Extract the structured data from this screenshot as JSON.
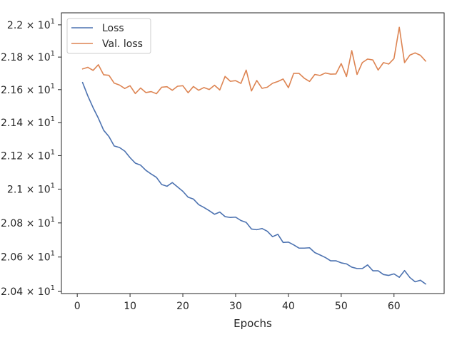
{
  "chart_data": {
    "type": "line",
    "xlabel": "Epochs",
    "ylabel": "",
    "title": "",
    "xlim": [
      -3,
      69.5
    ],
    "ylim": [
      20.388,
      22.075
    ],
    "x_ticks": [
      0,
      10,
      20,
      30,
      40,
      50,
      60
    ],
    "x_tick_labels": [
      "0",
      "10",
      "20",
      "30",
      "40",
      "50",
      "60"
    ],
    "y_ticks": [
      {
        "value": 20.4,
        "mant": "2.04",
        "exp": "1"
      },
      {
        "value": 20.6,
        "mant": "2.06",
        "exp": "1"
      },
      {
        "value": 20.8,
        "mant": "2.08",
        "exp": "1"
      },
      {
        "value": 21.0,
        "mant": "2.1",
        "exp": "1"
      },
      {
        "value": 21.2,
        "mant": "2.12",
        "exp": "1"
      },
      {
        "value": 21.4,
        "mant": "2.14",
        "exp": "1"
      },
      {
        "value": 21.6,
        "mant": "2.16",
        "exp": "1"
      },
      {
        "value": 21.8,
        "mant": "2.18",
        "exp": "1"
      },
      {
        "value": 22.0,
        "mant": "2.2",
        "exp": "1"
      }
    ],
    "y_tick_times": "×",
    "y_tick_base": "10",
    "yscale": "log",
    "grid": false,
    "legend_position": "upper-left",
    "x": [
      1,
      2,
      3,
      4,
      5,
      6,
      7,
      8,
      9,
      10,
      11,
      12,
      13,
      14,
      15,
      16,
      17,
      18,
      19,
      20,
      21,
      22,
      23,
      24,
      25,
      26,
      27,
      28,
      29,
      30,
      31,
      32,
      33,
      34,
      35,
      36,
      37,
      38,
      39,
      40,
      41,
      42,
      43,
      44,
      45,
      46,
      47,
      48,
      49,
      50,
      51,
      52,
      53,
      54,
      55,
      56,
      57,
      58,
      59,
      60,
      61,
      62,
      63,
      64,
      65,
      66
    ],
    "series": [
      {
        "name": "Loss",
        "color": "#4c72b0",
        "values": [
          21.644,
          21.562,
          21.49,
          21.426,
          21.353,
          21.315,
          21.258,
          21.249,
          21.227,
          21.188,
          21.155,
          21.143,
          21.112,
          21.09,
          21.07,
          21.027,
          21.017,
          21.039,
          21.013,
          20.987,
          20.952,
          20.941,
          20.908,
          20.891,
          20.872,
          20.851,
          20.864,
          20.837,
          20.832,
          20.834,
          20.814,
          20.803,
          20.764,
          20.76,
          20.767,
          20.751,
          20.719,
          20.733,
          20.685,
          20.687,
          20.671,
          20.652,
          20.652,
          20.654,
          20.626,
          20.612,
          20.597,
          20.578,
          20.578,
          20.566,
          20.56,
          20.541,
          20.533,
          20.533,
          20.554,
          20.52,
          20.52,
          20.498,
          20.493,
          20.502,
          20.482,
          20.521,
          20.481,
          20.456,
          20.465,
          20.443
        ]
      },
      {
        "name": "Val. loss",
        "color": "#dd8452",
        "values": [
          21.727,
          21.737,
          21.718,
          21.753,
          21.691,
          21.688,
          21.64,
          21.628,
          21.607,
          21.624,
          21.576,
          21.61,
          21.582,
          21.588,
          21.575,
          21.615,
          21.618,
          21.596,
          21.621,
          21.624,
          21.581,
          21.619,
          21.596,
          21.613,
          21.601,
          21.627,
          21.598,
          21.681,
          21.651,
          21.655,
          21.638,
          21.72,
          21.592,
          21.656,
          21.608,
          21.615,
          21.639,
          21.65,
          21.665,
          21.612,
          21.7,
          21.7,
          21.67,
          21.65,
          21.693,
          21.687,
          21.702,
          21.695,
          21.696,
          21.76,
          21.68,
          21.84,
          21.693,
          21.766,
          21.788,
          21.782,
          21.72,
          21.766,
          21.757,
          21.791,
          21.985,
          21.766,
          21.812,
          21.826,
          21.811,
          21.775
        ]
      }
    ]
  }
}
